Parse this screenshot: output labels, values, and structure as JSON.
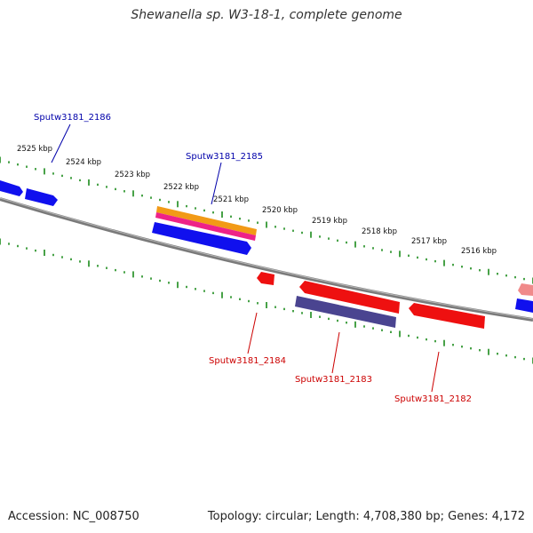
{
  "title": "Shewanella sp. W3-18-1, complete genome",
  "footer": {
    "accession": "Accession: NC_008750",
    "summary": "Topology: circular; Length: 4,708,380 bp; Genes: 4,172"
  },
  "colors": {
    "backbone": "#7a7a7a",
    "tick": "#1a8a1a",
    "forward_gene": "#1010ee",
    "reverse_gene": "#ee1010",
    "forward_label": "#0000aa",
    "reverse_label": "#cc0000",
    "orange_gene": "#f29a16",
    "pink_gene": "#ee2288",
    "purple_gene": "#4a4490",
    "faded_red": "#f08a8a"
  },
  "scale_labels": [
    "2525 kbp",
    "2524 kbp",
    "2523 kbp",
    "2522 kbp",
    "2521 kbp",
    "2520 kbp",
    "2519 kbp",
    "2518 kbp",
    "2517 kbp",
    "2516 kbp"
  ],
  "gene_labels": {
    "g2186": "Sputw3181_2186",
    "g2185": "Sputw3181_2185",
    "g2184": "Sputw3181_2184",
    "g2183": "Sputw3181_2183",
    "g2182": "Sputw3181_2182"
  }
}
